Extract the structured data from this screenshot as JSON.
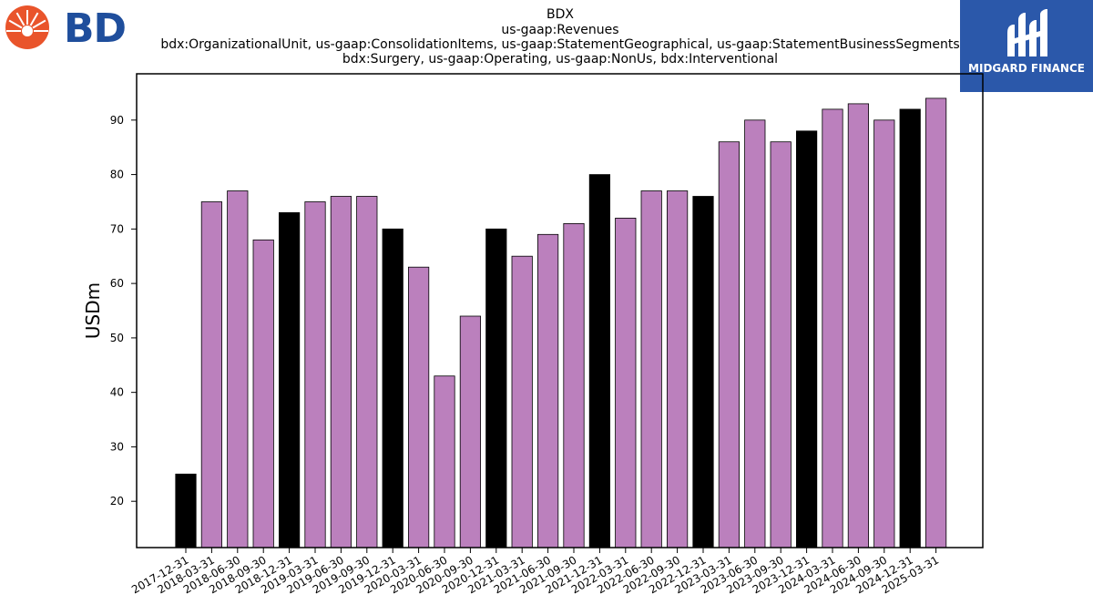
{
  "logos": {
    "left_brand": "BD",
    "right_brand": "MIDGARD FINANCE"
  },
  "colors": {
    "bar_default": "#bb80bd",
    "bar_highlight": "#000000",
    "bar_edge": "#000000",
    "logo_orange": "#e9542b",
    "logo_blue": "#1f4e9c",
    "midgard_bg": "#2b58aa"
  },
  "chart_data": {
    "type": "bar",
    "title_lines": [
      "BDX",
      "us-gaap:Revenues",
      "bdx:OrganizationalUnit, us-gaap:ConsolidationItems, us-gaap:StatementGeographical, us-gaap:StatementBusinessSegments",
      "bdx:Surgery, us-gaap:Operating, us-gaap:NonUs, bdx:Interventional"
    ],
    "ylabel": "USDm",
    "ylim": [
      11.5,
      98.5
    ],
    "yticks": [
      20,
      30,
      40,
      50,
      60,
      70,
      80,
      90
    ],
    "categories": [
      "2017-12-31",
      "2018-03-31",
      "2018-06-30",
      "2018-09-30",
      "2018-12-31",
      "2019-03-31",
      "2019-06-30",
      "2019-09-30",
      "2019-12-31",
      "2020-03-31",
      "2020-06-30",
      "2020-09-30",
      "2020-12-31",
      "2021-03-31",
      "2021-06-30",
      "2021-09-30",
      "2021-12-31",
      "2022-03-31",
      "2022-06-30",
      "2022-09-30",
      "2022-12-31",
      "2023-03-31",
      "2023-06-30",
      "2023-09-30",
      "2023-12-31",
      "2024-03-31",
      "2024-06-30",
      "2024-09-30",
      "2024-12-31",
      "2025-03-31"
    ],
    "values": [
      25,
      75,
      77,
      68,
      73,
      75,
      76,
      76,
      70,
      63,
      43,
      54,
      70,
      65,
      69,
      71,
      80,
      72,
      77,
      77,
      76,
      86,
      90,
      86,
      88,
      92,
      93,
      90,
      92,
      94
    ],
    "highlighted_categories": [
      "2017-12-31",
      "2018-12-31",
      "2019-12-31",
      "2020-12-31",
      "2021-12-31",
      "2022-12-31",
      "2023-12-31",
      "2024-12-31"
    ]
  }
}
